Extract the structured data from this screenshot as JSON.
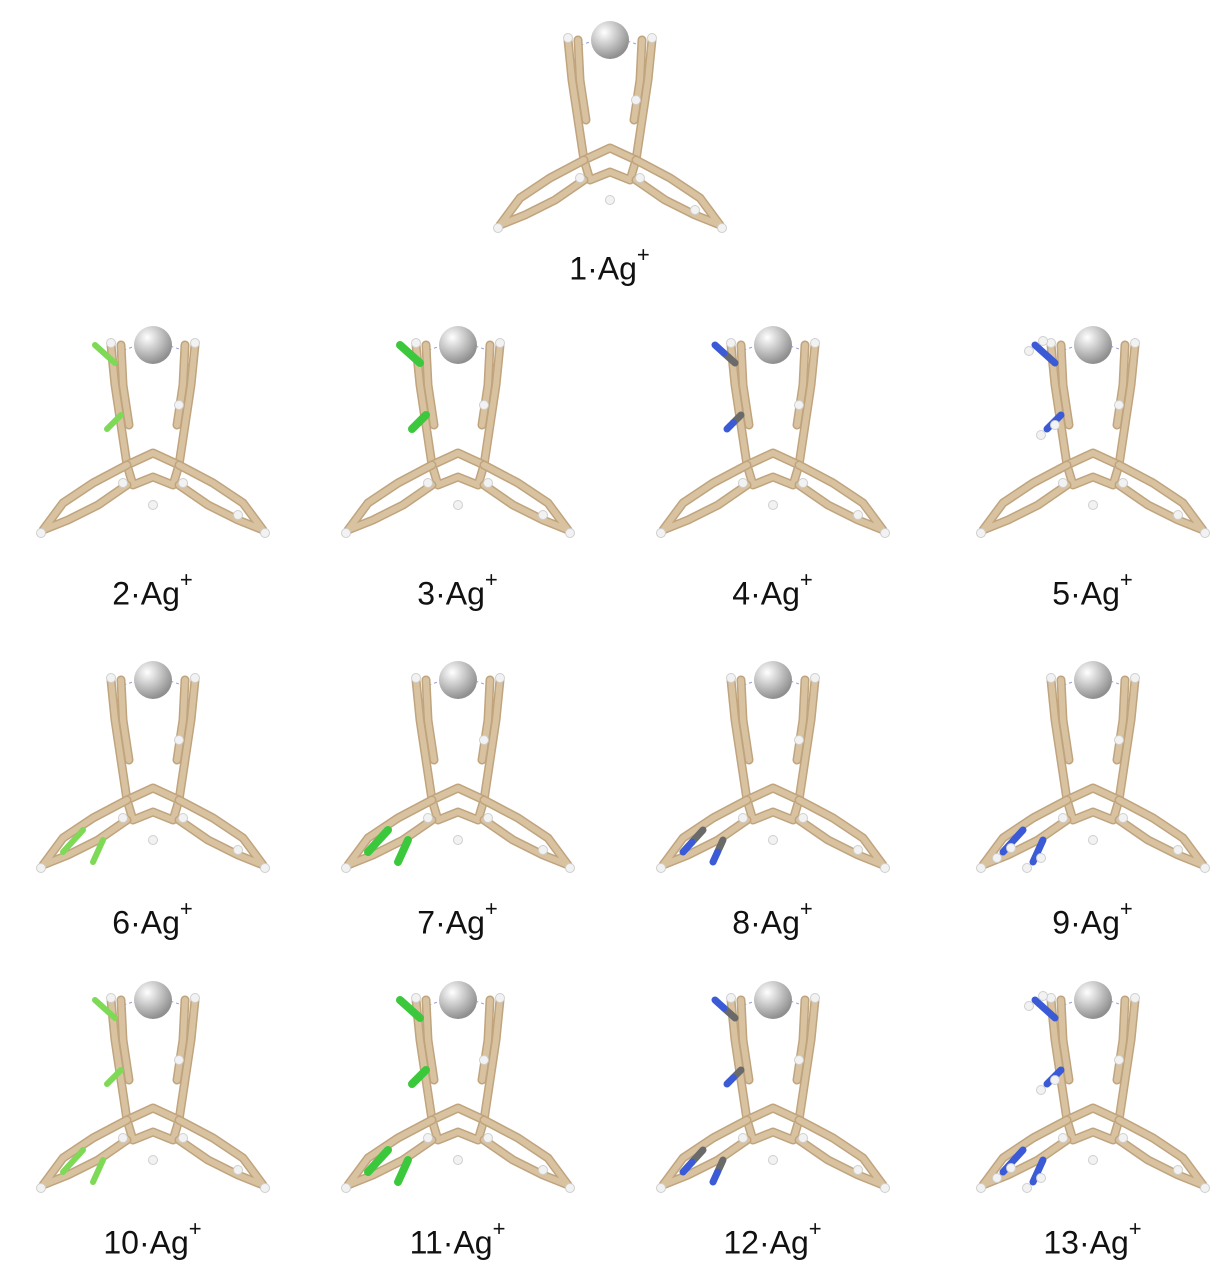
{
  "colors": {
    "carbon": "#d9c2a0",
    "carbon_dark": "#bfa47e",
    "hydrogen": "#f2f2f2",
    "fluorine": "#7ed957",
    "chlorine": "#3cc83c",
    "nitrogen": "#3b5bd6",
    "silver": "#c8c8c8",
    "contact": "#9a9ad6"
  },
  "panels": [
    {
      "id": "1",
      "label": "1·Ag",
      "charge": "+",
      "substituent": "none",
      "site": "none"
    },
    {
      "id": "2",
      "label": "2·Ag",
      "charge": "+",
      "substituent": "F",
      "site": "upper"
    },
    {
      "id": "3",
      "label": "3·Ag",
      "charge": "+",
      "substituent": "Cl",
      "site": "upper"
    },
    {
      "id": "4",
      "label": "4·Ag",
      "charge": "+",
      "substituent": "CN",
      "site": "upper"
    },
    {
      "id": "5",
      "label": "5·Ag",
      "charge": "+",
      "substituent": "NH2",
      "site": "upper"
    },
    {
      "id": "6",
      "label": "6·Ag",
      "charge": "+",
      "substituent": "F",
      "site": "lower"
    },
    {
      "id": "7",
      "label": "7·Ag",
      "charge": "+",
      "substituent": "Cl",
      "site": "lower"
    },
    {
      "id": "8",
      "label": "8·Ag",
      "charge": "+",
      "substituent": "CN",
      "site": "lower"
    },
    {
      "id": "9",
      "label": "9·Ag",
      "charge": "+",
      "substituent": "NH2",
      "site": "lower"
    },
    {
      "id": "10",
      "label": "10·Ag",
      "charge": "+",
      "substituent": "F",
      "site": "both"
    },
    {
      "id": "11",
      "label": "11·Ag",
      "charge": "+",
      "substituent": "Cl",
      "site": "both"
    },
    {
      "id": "12",
      "label": "12·Ag",
      "charge": "+",
      "substituent": "CN",
      "site": "both"
    },
    {
      "id": "13",
      "label": "13·Ag",
      "charge": "+",
      "substituent": "NH2",
      "site": "both"
    }
  ]
}
